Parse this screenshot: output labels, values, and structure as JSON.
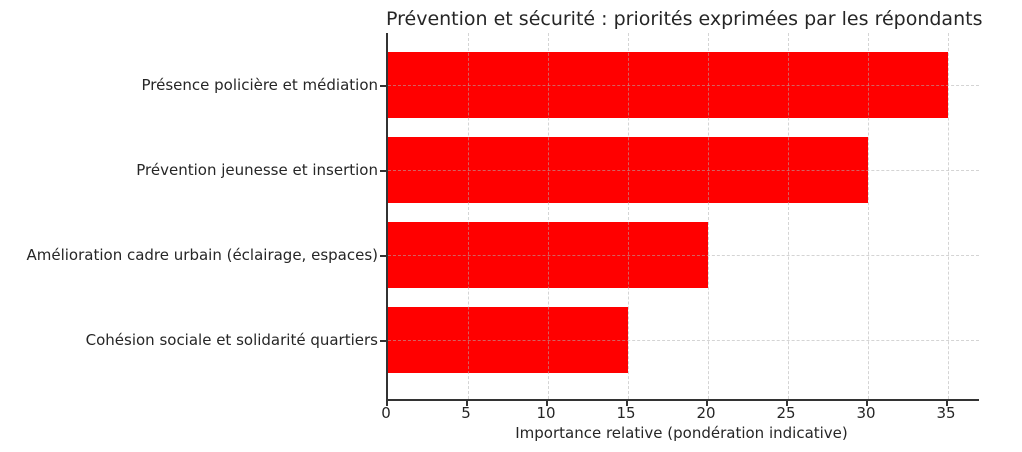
{
  "chart_data": {
    "type": "bar",
    "orientation": "horizontal",
    "title": "Prévention et sécurité : priorités exprimées par les répondants",
    "xlabel": "Importance relative (pondération indicative)",
    "ylabel": "",
    "categories": [
      "Présence policière et médiation",
      "Prévention jeunesse et insertion",
      "Amélioration cadre urbain (éclairage, espaces)",
      "Cohésion sociale et solidarité quartiers"
    ],
    "values": [
      35,
      30,
      20,
      15
    ],
    "xticks": [
      0,
      5,
      10,
      15,
      20,
      25,
      30,
      35
    ],
    "xlim": [
      0,
      37
    ],
    "bar_color": "#ff0000",
    "grid": "dashed, x and y, drawn over bars",
    "grid_color": "#b0b0b0",
    "spine_color": "#333333",
    "text_color": "#262626",
    "legend": "none"
  }
}
